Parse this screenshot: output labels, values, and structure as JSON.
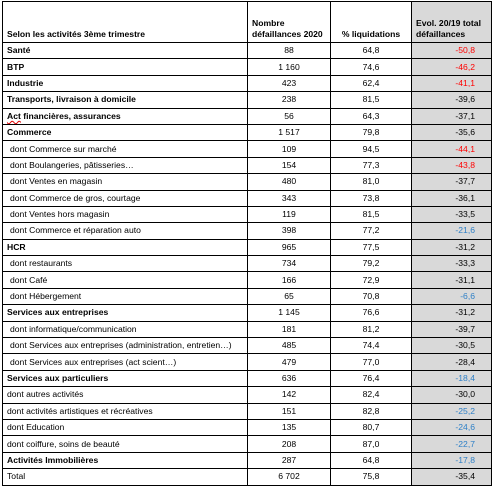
{
  "header": {
    "col1": "Selon les activités 3ème trimestre",
    "col2": "Nombre défaillances 2020",
    "col3": "% liquidations",
    "col4": "Evol. 20/19 total défaillances"
  },
  "rows": [
    {
      "label": "Santé",
      "defaillances": "88",
      "liquidations": "64,8",
      "evol": "-50,8",
      "color": "red",
      "bold": true,
      "sub": false
    },
    {
      "label": "BTP",
      "defaillances": "1 160",
      "liquidations": "74,6",
      "evol": "-46,2",
      "color": "red",
      "bold": true,
      "sub": false
    },
    {
      "label": "Industrie",
      "defaillances": "423",
      "liquidations": "62,4",
      "evol": "-41,1",
      "color": "red",
      "bold": true,
      "sub": false
    },
    {
      "label": "Transports, livraison à domicile",
      "defaillances": "238",
      "liquidations": "81,5",
      "evol": "-39,6",
      "color": "black",
      "bold": true,
      "sub": false
    },
    {
      "label": "Act financières, assurances",
      "defaillances": "56",
      "liquidations": "64,3",
      "evol": "-37,1",
      "color": "black",
      "bold": true,
      "sub": false,
      "underline_first": "Act"
    },
    {
      "label": "Commerce",
      "defaillances": "1 517",
      "liquidations": "79,8",
      "evol": "-35,6",
      "color": "black",
      "bold": true,
      "sub": false
    },
    {
      "label": "dont Commerce sur marché",
      "defaillances": "109",
      "liquidations": "94,5",
      "evol": "-44,1",
      "color": "red",
      "bold": false,
      "sub": true
    },
    {
      "label": "dont Boulangeries, pâtisseries…",
      "defaillances": "154",
      "liquidations": "77,3",
      "evol": "-43,8",
      "color": "red",
      "bold": false,
      "sub": true
    },
    {
      "label": "dont Ventes en magasin",
      "defaillances": "480",
      "liquidations": "81,0",
      "evol": "-37,7",
      "color": "black",
      "bold": false,
      "sub": true
    },
    {
      "label": "dont Commerce de gros, courtage",
      "defaillances": "343",
      "liquidations": "73,8",
      "evol": "-36,1",
      "color": "black",
      "bold": false,
      "sub": true
    },
    {
      "label": "dont Ventes hors magasin",
      "defaillances": "119",
      "liquidations": "81,5",
      "evol": "-33,5",
      "color": "black",
      "bold": false,
      "sub": true
    },
    {
      "label": "dont Commerce et réparation auto",
      "defaillances": "398",
      "liquidations": "77,2",
      "evol": "-21,6",
      "color": "blue",
      "bold": false,
      "sub": true
    },
    {
      "label": "HCR",
      "defaillances": "965",
      "liquidations": "77,5",
      "evol": "-31,2",
      "color": "black",
      "bold": true,
      "sub": false
    },
    {
      "label": "dont restaurants",
      "defaillances": "734",
      "liquidations": "79,2",
      "evol": "-33,3",
      "color": "black",
      "bold": false,
      "sub": true
    },
    {
      "label": "dont Café",
      "defaillances": "166",
      "liquidations": "72,9",
      "evol": "-31,1",
      "color": "black",
      "bold": false,
      "sub": true
    },
    {
      "label": "dont Hébergement",
      "defaillances": "65",
      "liquidations": "70,8",
      "evol": "-6,6",
      "color": "blue",
      "bold": false,
      "sub": true
    },
    {
      "label": "Services aux entreprises",
      "defaillances": "1 145",
      "liquidations": "76,6",
      "evol": "-31,2",
      "color": "black",
      "bold": true,
      "sub": false
    },
    {
      "label": "dont informatique/communication",
      "defaillances": "181",
      "liquidations": "81,2",
      "evol": "-39,7",
      "color": "black",
      "bold": false,
      "sub": true
    },
    {
      "label": "dont Services aux entreprises (administration, entretien…)",
      "defaillances": "485",
      "liquidations": "74,4",
      "evol": "-30,5",
      "color": "black",
      "bold": false,
      "sub": true
    },
    {
      "label": "dont Services aux entreprises (act scient…)",
      "defaillances": "479",
      "liquidations": "77,0",
      "evol": "-28,4",
      "color": "black",
      "bold": false,
      "sub": true
    },
    {
      "label": "Services aux particuliers",
      "defaillances": "636",
      "liquidations": "76,4",
      "evol": "-18,4",
      "color": "blue",
      "bold": true,
      "sub": false
    },
    {
      "label": "dont autres activités",
      "defaillances": "142",
      "liquidations": "82,4",
      "evol": "-30,0",
      "color": "black",
      "bold": false,
      "sub": false
    },
    {
      "label": "dont activités artistiques et récréatives",
      "defaillances": "151",
      "liquidations": "82,8",
      "evol": "-25,2",
      "color": "blue",
      "bold": false,
      "sub": false
    },
    {
      "label": "dont Education",
      "defaillances": "135",
      "liquidations": "80,7",
      "evol": "-24,6",
      "color": "blue",
      "bold": false,
      "sub": false
    },
    {
      "label": "dont coiffure, soins de beauté",
      "defaillances": "208",
      "liquidations": "87,0",
      "evol": "-22,7",
      "color": "blue",
      "bold": false,
      "sub": false
    },
    {
      "label": "Activités Immobilières",
      "defaillances": "287",
      "liquidations": "64,8",
      "evol": "-17,8",
      "color": "blue",
      "bold": true,
      "sub": false
    },
    {
      "label": "Total",
      "defaillances": "6 702",
      "liquidations": "75,8",
      "evol": "-35,4",
      "color": "black",
      "bold": false,
      "sub": false
    }
  ],
  "colors": {
    "red": "#ff0000",
    "blue": "#2f80c7",
    "shade": "#d9d9d9"
  }
}
